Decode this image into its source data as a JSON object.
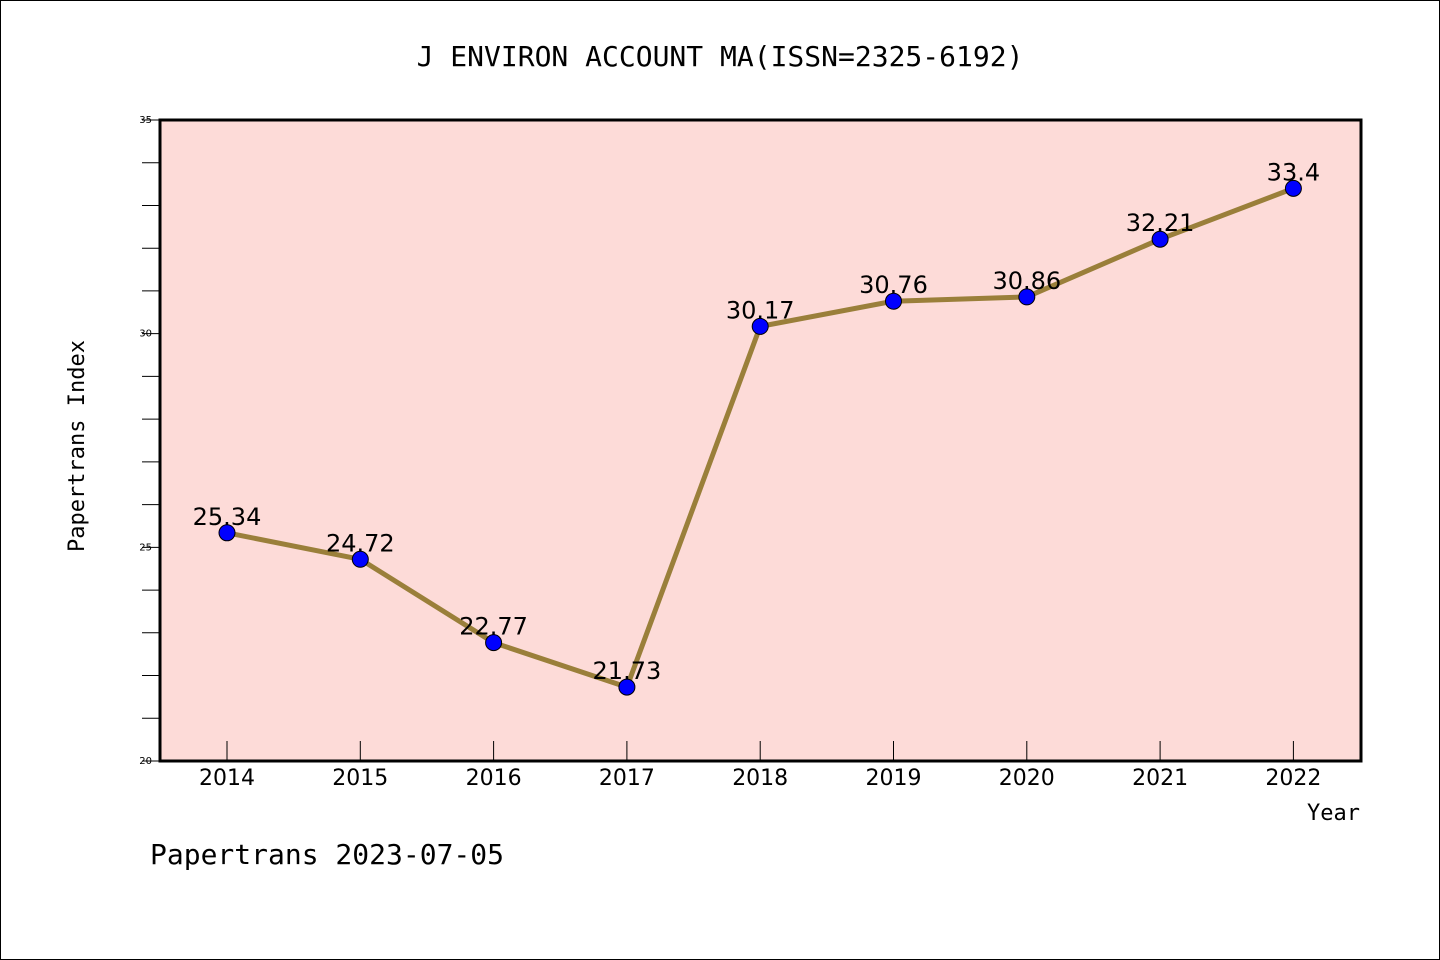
{
  "chart_data": {
    "type": "line",
    "title": "J ENVIRON ACCOUNT MA(ISSN=2325-6192)",
    "xlabel": "Year",
    "ylabel": "Papertrans Index",
    "categories": [
      "2014",
      "2015",
      "2016",
      "2017",
      "2018",
      "2019",
      "2020",
      "2021",
      "2022"
    ],
    "values": [
      25.34,
      24.72,
      22.77,
      21.73,
      30.17,
      30.76,
      30.86,
      32.21,
      33.4
    ],
    "data_labels": [
      "25.34",
      "24.72",
      "22.77",
      "21.73",
      "30.17",
      "30.76",
      "30.86",
      "32.21",
      "33.4"
    ],
    "ylim": [
      20,
      35
    ],
    "yticks": [
      20,
      25,
      30,
      35
    ],
    "yticks_labels": [
      "20",
      "25",
      "30",
      "35"
    ],
    "grid": false,
    "legend": "none",
    "colors": {
      "plot_background": "#fddbd8",
      "line": "#9a7f3a",
      "marker": "#0000ff"
    }
  },
  "footer": {
    "text": "Papertrans 2023-07-05"
  }
}
